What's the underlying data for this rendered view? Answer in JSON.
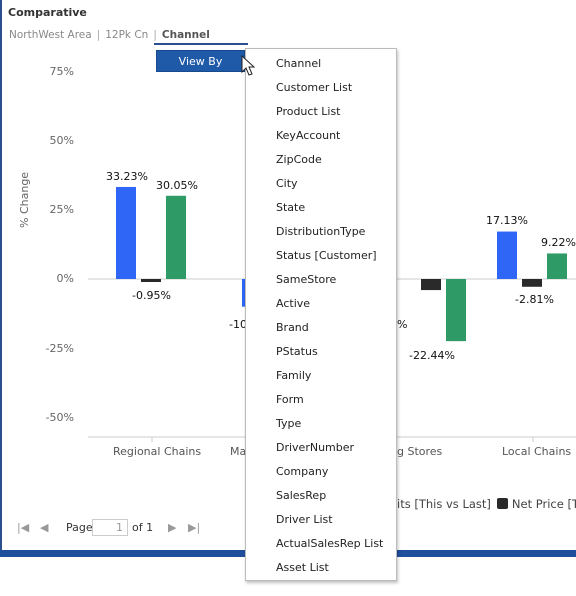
{
  "title": "Comparative",
  "breadcrumb": [
    "NorthWest Area",
    "12Pk Cn",
    "Channel"
  ],
  "view_by_label": "View By",
  "menu_items": [
    "Channel",
    "Customer List",
    "Product List",
    "KeyAccount",
    "ZipCode",
    "City",
    "State",
    "DistributionType",
    "Status [Customer]",
    "SameStore",
    "Active",
    "Brand",
    "PStatus",
    "Family",
    "Form",
    "Type",
    "DriverNumber",
    "Company",
    "SalesRep",
    "Driver List",
    "ActualSalesRep List",
    "Asset List"
  ],
  "pager": {
    "page_label": "Page",
    "page_value": "1",
    "of_label": "of 1"
  },
  "legend": {
    "partial_text": "its [This vs Last]",
    "item": "Net Price [Th"
  },
  "colors": {
    "blue": "#2f66f5",
    "black": "#2a2a2a",
    "green": "#2e9a66",
    "nav": "#1f4e9c"
  },
  "chart_data": {
    "type": "bar",
    "ylabel": "% Change",
    "yticks": [
      "75%",
      "50%",
      "25%",
      "0%",
      "-25%",
      "-50%"
    ],
    "ylim": [
      -50,
      75
    ],
    "categories": [
      "Regional Chains",
      "Ma",
      "g Stores",
      "Local Chains"
    ],
    "series": [
      {
        "name": "",
        "color": "#2f66f5",
        "values": [
          33.23,
          -10,
          null,
          17.13
        ]
      },
      {
        "name": "Net Price [Th",
        "color": "#2a2a2a",
        "values": [
          -0.95,
          null,
          -4,
          -2.81
        ]
      },
      {
        "name": "",
        "color": "#2e9a66",
        "values": [
          30.05,
          null,
          -22.44,
          9.22
        ]
      }
    ],
    "data_labels": [
      {
        "cat": 0,
        "series": 0,
        "text": "33.23%"
      },
      {
        "cat": 0,
        "series": 1,
        "text": "-0.95%"
      },
      {
        "cat": 0,
        "series": 2,
        "text": "30.05%"
      },
      {
        "cat": 1,
        "series": 0,
        "text": "-10"
      },
      {
        "cat": 2,
        "series": 1,
        "text": "%"
      },
      {
        "cat": 2,
        "series": 2,
        "text": "-22.44%"
      },
      {
        "cat": 3,
        "series": 0,
        "text": "17.13%"
      },
      {
        "cat": 3,
        "series": 1,
        "text": "-2.81%"
      },
      {
        "cat": 3,
        "series": 2,
        "text": "9.22%"
      }
    ]
  }
}
